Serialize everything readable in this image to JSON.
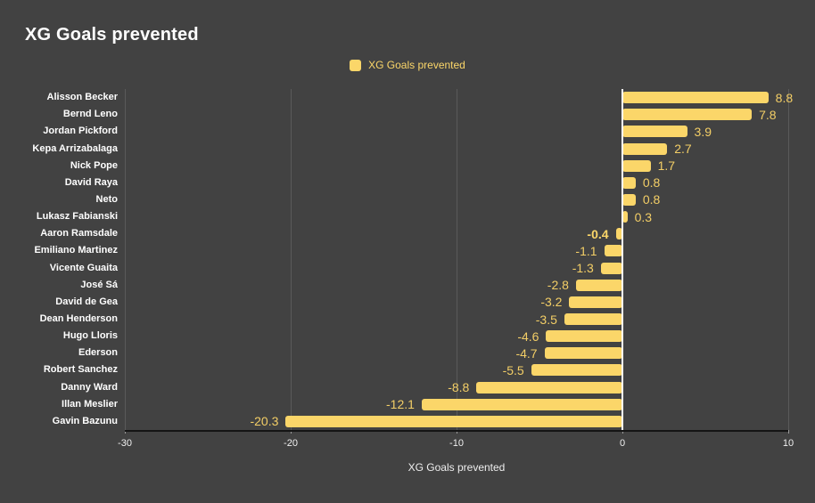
{
  "title": "XG Goals prevented",
  "legend": {
    "label": "XG Goals prevented"
  },
  "colors": {
    "background": "#424242",
    "bar": "#FBD669",
    "value_text": "#F3CE66",
    "grid": "#5a5a5a",
    "zero_line": "#ffffff",
    "axis_line": "#141414",
    "title_text": "#ffffff",
    "category_text": "#ffffff",
    "tick_text": "#f0f0f0"
  },
  "chart_data": {
    "type": "bar",
    "orientation": "horizontal",
    "title": "XG Goals prevented",
    "xlabel": "XG Goals prevented",
    "ylabel": "",
    "xlim": [
      -30,
      10
    ],
    "x_ticks": [
      "-30",
      "-20",
      "-10",
      "0",
      "10"
    ],
    "x_tick_values": [
      -30,
      -20,
      -10,
      0,
      10
    ],
    "grid": true,
    "legend_position": "top-center",
    "categories": [
      "Alisson Becker",
      "Bernd Leno",
      "Jordan Pickford",
      "Kepa Arrizabalaga",
      "Nick Pope",
      "David Raya",
      "Neto",
      "Lukasz Fabianski",
      "Aaron Ramsdale",
      "Emiliano Martinez",
      "Vicente Guaita",
      "José Sá",
      "David de Gea",
      "Dean Henderson",
      "Hugo Lloris",
      "Ederson",
      "Robert Sanchez",
      "Danny Ward",
      "Illan Meslier",
      "Gavin Bazunu"
    ],
    "values": [
      8.8,
      7.8,
      3.9,
      2.7,
      1.7,
      0.8,
      0.8,
      0.3,
      -0.4,
      -1.1,
      -1.3,
      -2.8,
      -3.2,
      -3.5,
      -4.6,
      -4.7,
      -5.5,
      -8.8,
      -12.1,
      -20.3
    ],
    "value_labels": [
      "8.8",
      "7.8",
      "3.9",
      "2.7",
      "1.7",
      "0.8",
      "0.8",
      "0.3",
      "-0.4",
      "-1.1",
      "-1.3",
      "-2.8",
      "-3.2",
      "-3.5",
      "-4.6",
      "-4.7",
      "-5.5",
      "-8.8",
      "-12.1",
      "-20.3"
    ],
    "emphasized_label_index": 8
  }
}
